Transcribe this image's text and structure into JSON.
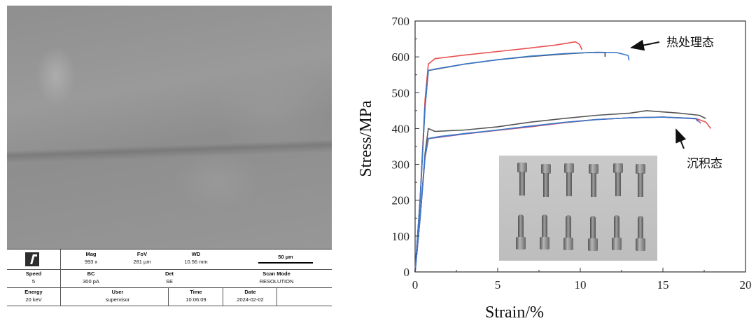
{
  "sem": {
    "mag_label": "Mag",
    "mag": "993 x",
    "fov_label": "FoV",
    "fov": "281 µm",
    "wd_label": "WD",
    "wd": "10.56 mm",
    "scale_bar": "50 µm",
    "speed_label": "Speed",
    "speed": "5",
    "bc_label": "BC",
    "bc": "300 pA",
    "det_label": "Det",
    "det": "SE",
    "scan_mode_label": "Scan Mode",
    "scan_mode": "RESOLUTION",
    "energy_label": "Energy",
    "energy": "20 keV",
    "user_label": "User",
    "user": "supervisor",
    "time_label": "Time",
    "time": "10:06:09",
    "date_label": "Date",
    "date": "2024-02-02"
  },
  "chart_data": {
    "type": "line",
    "xlabel": "Strain/%",
    "ylabel": "Stress/MPa",
    "xlim": [
      0,
      20
    ],
    "ylim": [
      0,
      700
    ],
    "xticks": [
      0,
      5,
      10,
      15,
      20
    ],
    "yticks": [
      0,
      100,
      200,
      300,
      400,
      500,
      600,
      700
    ],
    "grid": false,
    "annotations": [
      {
        "text": "热处理态",
        "target_x": 13.2,
        "target_y": 615
      },
      {
        "text": "沉积态",
        "target_x": 15.5,
        "target_y": 440
      }
    ],
    "series": [
      {
        "group": "热处理态",
        "color": "#e8504f",
        "points": [
          [
            0,
            0
          ],
          [
            0.3,
            200
          ],
          [
            0.6,
            480
          ],
          [
            0.8,
            580
          ],
          [
            1.2,
            595
          ],
          [
            3,
            605
          ],
          [
            5,
            615
          ],
          [
            7,
            625
          ],
          [
            8.5,
            633
          ],
          [
            9.7,
            642
          ],
          [
            9.95,
            635
          ],
          [
            10.1,
            620
          ]
        ]
      },
      {
        "group": "热处理态",
        "color": "#444444",
        "points": [
          [
            0,
            0
          ],
          [
            0.3,
            200
          ],
          [
            0.6,
            460
          ],
          [
            0.8,
            562
          ],
          [
            1.2,
            565
          ],
          [
            3,
            580
          ],
          [
            5,
            592
          ],
          [
            7,
            601
          ],
          [
            9,
            608
          ],
          [
            10.5,
            612
          ],
          [
            11.5,
            612
          ],
          [
            11.5,
            600
          ]
        ]
      },
      {
        "group": "热处理态",
        "color": "#3a78c9",
        "points": [
          [
            0,
            0
          ],
          [
            0.3,
            200
          ],
          [
            0.6,
            460
          ],
          [
            0.8,
            562
          ],
          [
            1.2,
            566
          ],
          [
            3,
            580
          ],
          [
            5,
            592
          ],
          [
            7,
            602
          ],
          [
            9,
            609
          ],
          [
            11,
            613
          ],
          [
            12.2,
            612
          ],
          [
            12.9,
            604
          ],
          [
            12.95,
            590
          ]
        ]
      },
      {
        "group": "沉积态",
        "color": "#555555",
        "points": [
          [
            0,
            0
          ],
          [
            0.3,
            150
          ],
          [
            0.6,
            330
          ],
          [
            0.8,
            400
          ],
          [
            1.2,
            392
          ],
          [
            3,
            396
          ],
          [
            5,
            405
          ],
          [
            7,
            418
          ],
          [
            9,
            428
          ],
          [
            11,
            437
          ],
          [
            13,
            443
          ],
          [
            14,
            450
          ],
          [
            16,
            443
          ],
          [
            17.2,
            437
          ],
          [
            17.6,
            428
          ]
        ]
      },
      {
        "group": "沉积态",
        "color": "#e8504f",
        "points": [
          [
            0,
            0
          ],
          [
            0.3,
            150
          ],
          [
            0.6,
            320
          ],
          [
            0.8,
            372
          ],
          [
            1.5,
            376
          ],
          [
            3,
            385
          ],
          [
            5,
            395
          ],
          [
            7,
            405
          ],
          [
            9,
            416
          ],
          [
            11,
            425
          ],
          [
            13,
            430
          ],
          [
            15,
            432
          ],
          [
            17,
            428
          ],
          [
            17.6,
            418
          ],
          [
            17.9,
            400
          ]
        ]
      },
      {
        "group": "沉积态",
        "color": "#8a5aa8",
        "points": [
          [
            0,
            0
          ],
          [
            0.3,
            150
          ],
          [
            0.6,
            320
          ],
          [
            0.8,
            372
          ],
          [
            1.5,
            376
          ],
          [
            3,
            385
          ],
          [
            5,
            396
          ],
          [
            7,
            406
          ],
          [
            9,
            417
          ],
          [
            11,
            425
          ],
          [
            13,
            430
          ],
          [
            15,
            432
          ],
          [
            17,
            427
          ],
          [
            17.3,
            415
          ]
        ]
      },
      {
        "group": "沉积态",
        "color": "#3a78c9",
        "points": [
          [
            0,
            0
          ],
          [
            0.3,
            150
          ],
          [
            0.6,
            320
          ],
          [
            0.8,
            372
          ],
          [
            1.5,
            378
          ],
          [
            3,
            386
          ],
          [
            5,
            396
          ],
          [
            7,
            407
          ],
          [
            9,
            417
          ],
          [
            11,
            425
          ],
          [
            13,
            430
          ],
          [
            15,
            432
          ],
          [
            17,
            428
          ],
          [
            17.1,
            420
          ]
        ]
      }
    ]
  }
}
